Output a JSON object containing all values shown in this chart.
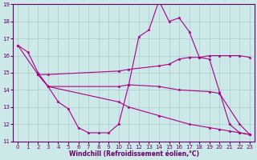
{
  "xlabel": "Windchill (Refroidissement éolien,°C)",
  "background_color": "#cce8e8",
  "grid_color": "#aacccc",
  "line_color": "#aa0088",
  "xlim": [
    -0.5,
    23.5
  ],
  "ylim": [
    11,
    19
  ],
  "xticks": [
    0,
    1,
    2,
    3,
    4,
    5,
    6,
    7,
    8,
    9,
    10,
    11,
    12,
    13,
    14,
    15,
    16,
    17,
    18,
    19,
    20,
    21,
    22,
    23
  ],
  "yticks": [
    11,
    12,
    13,
    14,
    15,
    16,
    17,
    18,
    19
  ],
  "series": [
    {
      "x": [
        0,
        1,
        2,
        3,
        4,
        5,
        6,
        7,
        8,
        9,
        10,
        11,
        12,
        13,
        14,
        15,
        16,
        17,
        18,
        19,
        20,
        21,
        22,
        23
      ],
      "y": [
        16.6,
        16.2,
        15.0,
        14.2,
        13.3,
        12.9,
        11.8,
        11.5,
        11.5,
        11.5,
        12.0,
        14.3,
        17.1,
        17.5,
        19.2,
        18.0,
        18.2,
        17.4,
        15.9,
        15.8,
        13.9,
        12.0,
        11.5,
        11.4
      ]
    },
    {
      "x": [
        2,
        3,
        10,
        11,
        14,
        15,
        16,
        17,
        18,
        19,
        20,
        21,
        22,
        23
      ],
      "y": [
        14.9,
        14.9,
        15.1,
        15.2,
        15.4,
        15.5,
        15.8,
        15.9,
        15.9,
        16.0,
        16.0,
        16.0,
        16.0,
        15.9
      ]
    },
    {
      "x": [
        0,
        2,
        3,
        10,
        11,
        14,
        17,
        19,
        20,
        21,
        22,
        23
      ],
      "y": [
        16.6,
        14.9,
        14.2,
        13.3,
        13.0,
        12.5,
        12.0,
        11.8,
        11.7,
        11.6,
        11.5,
        11.4
      ]
    },
    {
      "x": [
        2,
        3,
        10,
        11,
        14,
        16,
        19,
        20,
        22,
        23
      ],
      "y": [
        14.9,
        14.2,
        14.2,
        14.3,
        14.2,
        14.0,
        13.9,
        13.8,
        12.0,
        11.4
      ]
    }
  ]
}
